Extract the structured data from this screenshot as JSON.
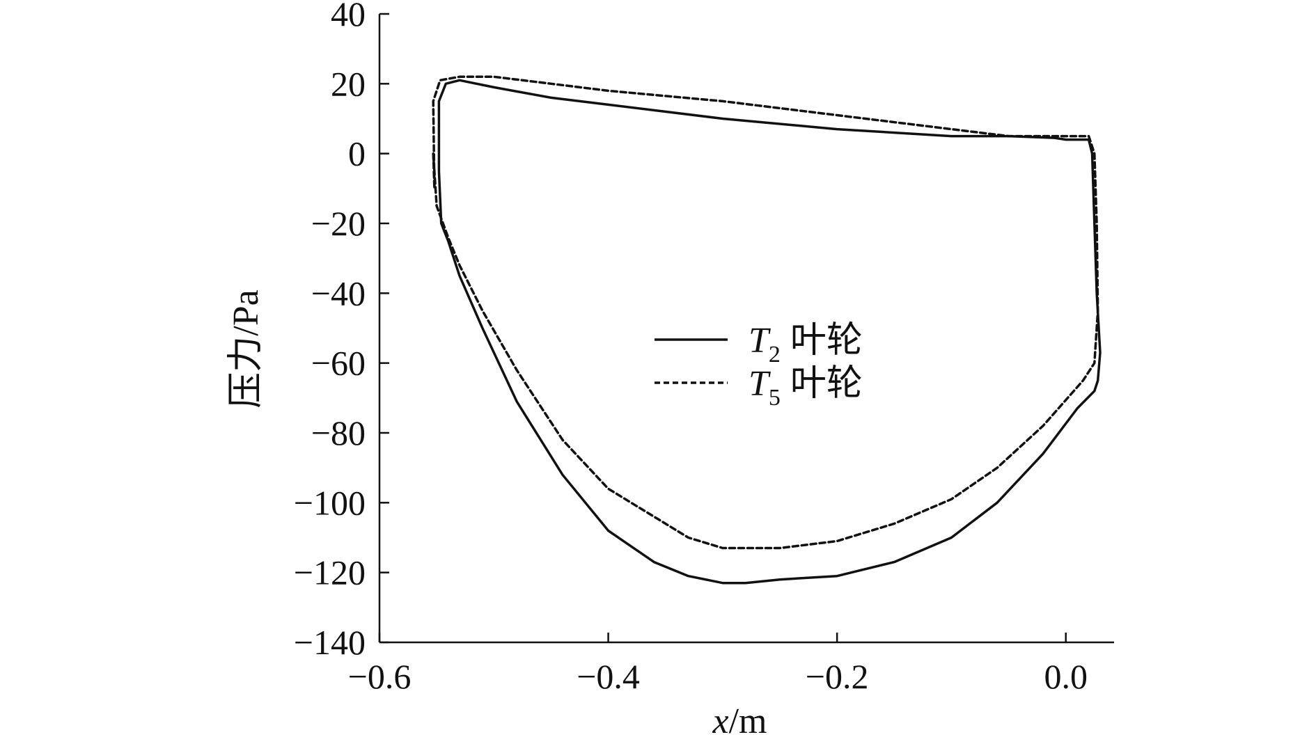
{
  "chart_data": {
    "type": "line",
    "xlabel": {
      "var": "x",
      "unit": "/m"
    },
    "ylabel": "压力/Pa",
    "xlim": [
      -0.6,
      0.03
    ],
    "ylim": [
      -140,
      40
    ],
    "xticks": [
      -0.6,
      -0.4,
      -0.2,
      0.0
    ],
    "xtick_labels": [
      "−0.6",
      "−0.4",
      "−0.2",
      "0.0"
    ],
    "yticks": [
      40,
      20,
      0,
      -20,
      -40,
      -60,
      -80,
      -100,
      -120,
      -140
    ],
    "ytick_labels": [
      "40",
      "20",
      "0",
      "−20",
      "−40",
      "−60",
      "−80",
      "−100",
      "−120",
      "−140"
    ],
    "grid": false,
    "legend_position": "center",
    "series": [
      {
        "name": "T2 叶轮",
        "legend": {
          "letter": "T",
          "sub": "2",
          "suffix": "叶轮"
        },
        "style": "solid",
        "color": "#111111",
        "x": [
          -0.546,
          -0.548,
          -0.548,
          -0.542,
          -0.53,
          -0.5,
          -0.45,
          -0.4,
          -0.3,
          -0.2,
          -0.1,
          -0.05,
          -0.01,
          0.0,
          0.02,
          0.023,
          0.025,
          0.027,
          0.03,
          0.028,
          0.025,
          0.01,
          -0.02,
          -0.06,
          -0.1,
          -0.15,
          -0.2,
          -0.25,
          -0.28,
          -0.3,
          -0.33,
          -0.36,
          -0.4,
          -0.44,
          -0.48,
          -0.51,
          -0.53,
          -0.54,
          -0.546
        ],
        "y": [
          -20,
          -5,
          15,
          20,
          21,
          19,
          16,
          14,
          10,
          7,
          5,
          5,
          4.5,
          4,
          4,
          0,
          -20,
          -40,
          -57,
          -65,
          -68,
          -73,
          -86,
          -100,
          -110,
          -117,
          -121,
          -122,
          -123,
          -123,
          -121,
          -117,
          -108,
          -92,
          -71,
          -50,
          -35,
          -25,
          -20
        ]
      },
      {
        "name": "T5 叶轮",
        "legend": {
          "letter": "T",
          "sub": "5",
          "suffix": "叶轮"
        },
        "style": "dashed",
        "color": "#111111",
        "x": [
          -0.553,
          -0.552,
          -0.553,
          -0.547,
          -0.53,
          -0.5,
          -0.45,
          -0.4,
          -0.3,
          -0.2,
          -0.1,
          -0.05,
          -0.01,
          0.0,
          0.02,
          0.025,
          0.027,
          0.028,
          0.025,
          0.015,
          -0.02,
          -0.06,
          -0.1,
          -0.15,
          -0.2,
          -0.25,
          -0.28,
          -0.3,
          -0.33,
          -0.36,
          -0.4,
          -0.44,
          -0.48,
          -0.51,
          -0.53,
          -0.54,
          -0.55,
          -0.553
        ],
        "y": [
          0,
          -10,
          15,
          21,
          22,
          22,
          20,
          18,
          15,
          11,
          7,
          5,
          5,
          5,
          5,
          0,
          -20,
          -45,
          -60,
          -65,
          -78,
          -90,
          -99,
          -106,
          -111,
          -113,
          -113,
          -113,
          -110,
          -104,
          -96,
          -82,
          -62,
          -45,
          -32,
          -24,
          -15,
          0
        ]
      }
    ]
  }
}
